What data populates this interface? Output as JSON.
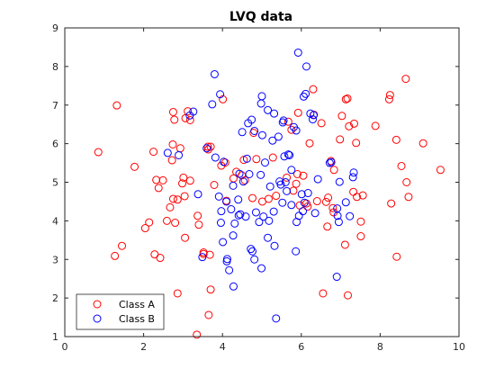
{
  "chart_data": {
    "type": "scatter",
    "title": "LVQ data",
    "xlabel": "",
    "ylabel": "",
    "xlim": [
      0,
      10
    ],
    "ylim": [
      1,
      9
    ],
    "xticks": [
      0,
      2,
      4,
      6,
      8,
      10
    ],
    "yticks": [
      1,
      2,
      3,
      4,
      5,
      6,
      7,
      8,
      9
    ],
    "xtick_labels": [
      "0",
      "2",
      "4",
      "6",
      "8",
      "10"
    ],
    "ytick_labels": [
      "1",
      "2",
      "3",
      "4",
      "5",
      "6",
      "7",
      "8",
      "9"
    ],
    "grid": false,
    "legend_position": "bottom-left",
    "marker": "open-circle",
    "series": [
      {
        "name": "Class A",
        "color": "#ff0000",
        "points": [
          [
            0.85,
            5.78
          ],
          [
            1.32,
            6.99
          ],
          [
            1.27,
            3.09
          ],
          [
            1.45,
            3.35
          ],
          [
            1.77,
            5.4
          ],
          [
            2.04,
            3.81
          ],
          [
            2.14,
            3.96
          ],
          [
            2.25,
            5.79
          ],
          [
            2.28,
            3.13
          ],
          [
            2.32,
            5.06
          ],
          [
            2.38,
            4.85
          ],
          [
            2.42,
            3.04
          ],
          [
            2.49,
            5.05
          ],
          [
            2.59,
            4.0
          ],
          [
            2.67,
            4.35
          ],
          [
            2.72,
            5.57
          ],
          [
            2.74,
            5.98
          ],
          [
            2.75,
            4.57
          ],
          [
            2.75,
            6.82
          ],
          [
            2.78,
            6.62
          ],
          [
            2.8,
            3.95
          ],
          [
            2.86,
            4.55
          ],
          [
            2.86,
            2.12
          ],
          [
            2.93,
            5.88
          ],
          [
            2.98,
            4.97
          ],
          [
            3.01,
            5.12
          ],
          [
            3.04,
            4.64
          ],
          [
            3.05,
            3.56
          ],
          [
            3.06,
            6.66
          ],
          [
            3.12,
            6.84
          ],
          [
            3.18,
            5.04
          ],
          [
            3.18,
            6.61
          ],
          [
            3.35,
            1.05
          ],
          [
            3.37,
            4.13
          ],
          [
            3.4,
            3.9
          ],
          [
            3.52,
            3.18
          ],
          [
            3.52,
            3.14
          ],
          [
            3.63,
            5.92
          ],
          [
            3.64,
            5.85
          ],
          [
            3.65,
            1.56
          ],
          [
            3.68,
            3.12
          ],
          [
            3.7,
            2.22
          ],
          [
            3.7,
            5.92
          ],
          [
            3.79,
            4.93
          ],
          [
            3.97,
            5.43
          ],
          [
            4.01,
            7.15
          ],
          [
            4.07,
            5.51
          ],
          [
            4.1,
            4.52
          ],
          [
            4.28,
            5.1
          ],
          [
            4.35,
            5.27
          ],
          [
            4.49,
            5.18
          ],
          [
            4.54,
            5.58
          ],
          [
            4.57,
            5.05
          ],
          [
            4.76,
            4.59
          ],
          [
            4.79,
            6.28
          ],
          [
            4.86,
            5.6
          ],
          [
            5.01,
            4.5
          ],
          [
            5.17,
            4.57
          ],
          [
            5.28,
            5.64
          ],
          [
            5.36,
            4.65
          ],
          [
            5.63,
            5.12
          ],
          [
            5.67,
            6.57
          ],
          [
            5.75,
            6.36
          ],
          [
            5.8,
            4.78
          ],
          [
            5.87,
            4.96
          ],
          [
            5.9,
            5.21
          ],
          [
            5.92,
            6.8
          ],
          [
            5.96,
            4.4
          ],
          [
            6.05,
            5.17
          ],
          [
            6.16,
            4.37
          ],
          [
            6.21,
            6.01
          ],
          [
            6.3,
            7.41
          ],
          [
            6.32,
            6.75
          ],
          [
            6.4,
            4.51
          ],
          [
            6.51,
            6.53
          ],
          [
            6.55,
            2.12
          ],
          [
            6.63,
            4.49
          ],
          [
            6.68,
            4.6
          ],
          [
            6.75,
            5.55
          ],
          [
            6.8,
            4.33
          ],
          [
            6.82,
            4.22
          ],
          [
            6.83,
            5.32
          ],
          [
            6.98,
            6.11
          ],
          [
            7.03,
            6.72
          ],
          [
            7.11,
            3.38
          ],
          [
            7.13,
            7.15
          ],
          [
            7.17,
            7.17
          ],
          [
            7.18,
            2.07
          ],
          [
            7.21,
            6.45
          ],
          [
            7.32,
            4.75
          ],
          [
            7.34,
            6.52
          ],
          [
            7.39,
            6.02
          ],
          [
            7.41,
            4.62
          ],
          [
            7.51,
            3.98
          ],
          [
            7.51,
            3.6
          ],
          [
            7.56,
            4.66
          ],
          [
            7.88,
            6.46
          ],
          [
            8.23,
            7.15
          ],
          [
            8.25,
            7.26
          ],
          [
            8.28,
            4.45
          ],
          [
            8.41,
            6.1
          ],
          [
            8.42,
            3.07
          ],
          [
            8.54,
            5.42
          ],
          [
            8.65,
            7.68
          ],
          [
            8.67,
            5.0
          ],
          [
            8.72,
            4.62
          ],
          [
            9.09,
            6.01
          ],
          [
            9.53,
            5.32
          ],
          [
            6.66,
            3.85
          ],
          [
            6.13,
            4.45
          ]
        ]
      },
      {
        "name": "Class B",
        "color": "#0000ff",
        "points": [
          [
            2.61,
            5.76
          ],
          [
            2.89,
            5.7
          ],
          [
            3.17,
            6.73
          ],
          [
            3.26,
            6.83
          ],
          [
            3.38,
            4.69
          ],
          [
            3.49,
            3.06
          ],
          [
            3.6,
            5.88
          ],
          [
            3.74,
            7.02
          ],
          [
            3.8,
            7.8
          ],
          [
            3.82,
            5.64
          ],
          [
            3.91,
            4.63
          ],
          [
            3.94,
            7.28
          ],
          [
            3.96,
            3.95
          ],
          [
            3.97,
            4.25
          ],
          [
            4.01,
            3.45
          ],
          [
            4.03,
            5.53
          ],
          [
            4.1,
            4.5
          ],
          [
            4.11,
            2.95
          ],
          [
            4.12,
            3.01
          ],
          [
            4.17,
            2.72
          ],
          [
            4.22,
            4.3
          ],
          [
            4.27,
            3.62
          ],
          [
            4.27,
            4.91
          ],
          [
            4.28,
            2.3
          ],
          [
            4.31,
            3.93
          ],
          [
            4.41,
            4.14
          ],
          [
            4.43,
            5.22
          ],
          [
            4.45,
            4.17
          ],
          [
            4.5,
            6.3
          ],
          [
            4.53,
            5.02
          ],
          [
            4.59,
            4.11
          ],
          [
            4.62,
            5.61
          ],
          [
            4.65,
            6.53
          ],
          [
            4.68,
            5.21
          ],
          [
            4.74,
            6.62
          ],
          [
            4.76,
            3.21
          ],
          [
            4.81,
            3.0
          ],
          [
            4.81,
            6.33
          ],
          [
            4.85,
            4.22
          ],
          [
            4.93,
            3.97
          ],
          [
            4.97,
            5.19
          ],
          [
            4.98,
            7.04
          ],
          [
            4.99,
            2.77
          ],
          [
            5.0,
            7.23
          ],
          [
            5.01,
            6.22
          ],
          [
            5.04,
            4.11
          ],
          [
            5.08,
            5.51
          ],
          [
            5.15,
            3.56
          ],
          [
            5.15,
            6.87
          ],
          [
            5.18,
            4.0
          ],
          [
            5.21,
            4.89
          ],
          [
            5.27,
            6.08
          ],
          [
            5.3,
            4.24
          ],
          [
            5.31,
            6.78
          ],
          [
            5.32,
            3.35
          ],
          [
            5.36,
            1.47
          ],
          [
            5.42,
            6.18
          ],
          [
            5.48,
            4.94
          ],
          [
            5.52,
            4.47
          ],
          [
            5.53,
            6.55
          ],
          [
            5.55,
            6.6
          ],
          [
            5.57,
            5.67
          ],
          [
            5.6,
            5.0
          ],
          [
            5.63,
            4.77
          ],
          [
            5.67,
            5.72
          ],
          [
            5.7,
            5.7
          ],
          [
            5.75,
            4.41
          ],
          [
            5.75,
            5.32
          ],
          [
            5.81,
            6.43
          ],
          [
            5.86,
            3.21
          ],
          [
            5.88,
            3.97
          ],
          [
            5.92,
            8.36
          ],
          [
            5.94,
            4.13
          ],
          [
            6.01,
            4.69
          ],
          [
            6.04,
            4.25
          ],
          [
            6.06,
            7.22
          ],
          [
            6.11,
            7.29
          ],
          [
            6.13,
            8.0
          ],
          [
            6.17,
            4.72
          ],
          [
            6.23,
            6.78
          ],
          [
            6.29,
            6.63
          ],
          [
            6.31,
            6.74
          ],
          [
            6.35,
            4.2
          ],
          [
            6.42,
            5.08
          ],
          [
            6.72,
            5.5
          ],
          [
            6.76,
            5.52
          ],
          [
            6.9,
            2.55
          ],
          [
            6.91,
            4.32
          ],
          [
            6.92,
            4.13
          ],
          [
            6.95,
            3.97
          ],
          [
            6.97,
            5.01
          ],
          [
            7.13,
            4.48
          ],
          [
            7.23,
            4.12
          ],
          [
            7.31,
            5.13
          ],
          [
            7.33,
            5.25
          ],
          [
            4.4,
            4.55
          ],
          [
            5.87,
            6.34
          ],
          [
            6.08,
            4.47
          ],
          [
            4.72,
            3.27
          ],
          [
            5.45,
            5.02
          ]
        ]
      }
    ]
  }
}
